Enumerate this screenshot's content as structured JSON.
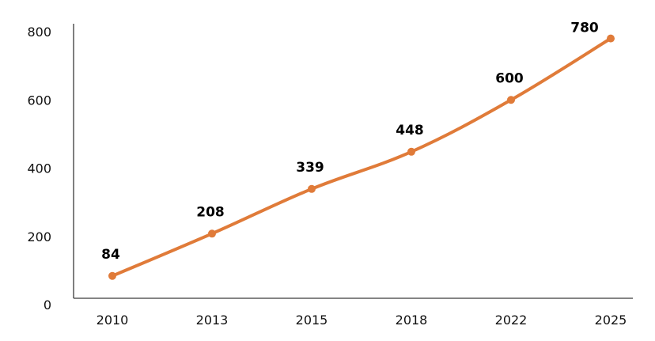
{
  "chart_data": {
    "type": "line",
    "title": "",
    "xlabel": "",
    "ylabel": "",
    "categories": [
      "2010",
      "2013",
      "2015",
      "2018",
      "2022",
      "2025"
    ],
    "series": [
      {
        "values": [
          84,
          208,
          339,
          448,
          600,
          780
        ],
        "color": "#E07B39"
      }
    ],
    "data_labels": [
      "84",
      "208",
      "339",
      "448",
      "600",
      "780"
    ],
    "y_ticks": [
      0,
      200,
      400,
      600,
      800
    ],
    "y_tick_labels": [
      "0",
      "200",
      "400",
      "600",
      "800"
    ],
    "ylim": [
      0,
      800
    ],
    "grid": false,
    "legend": "none"
  }
}
